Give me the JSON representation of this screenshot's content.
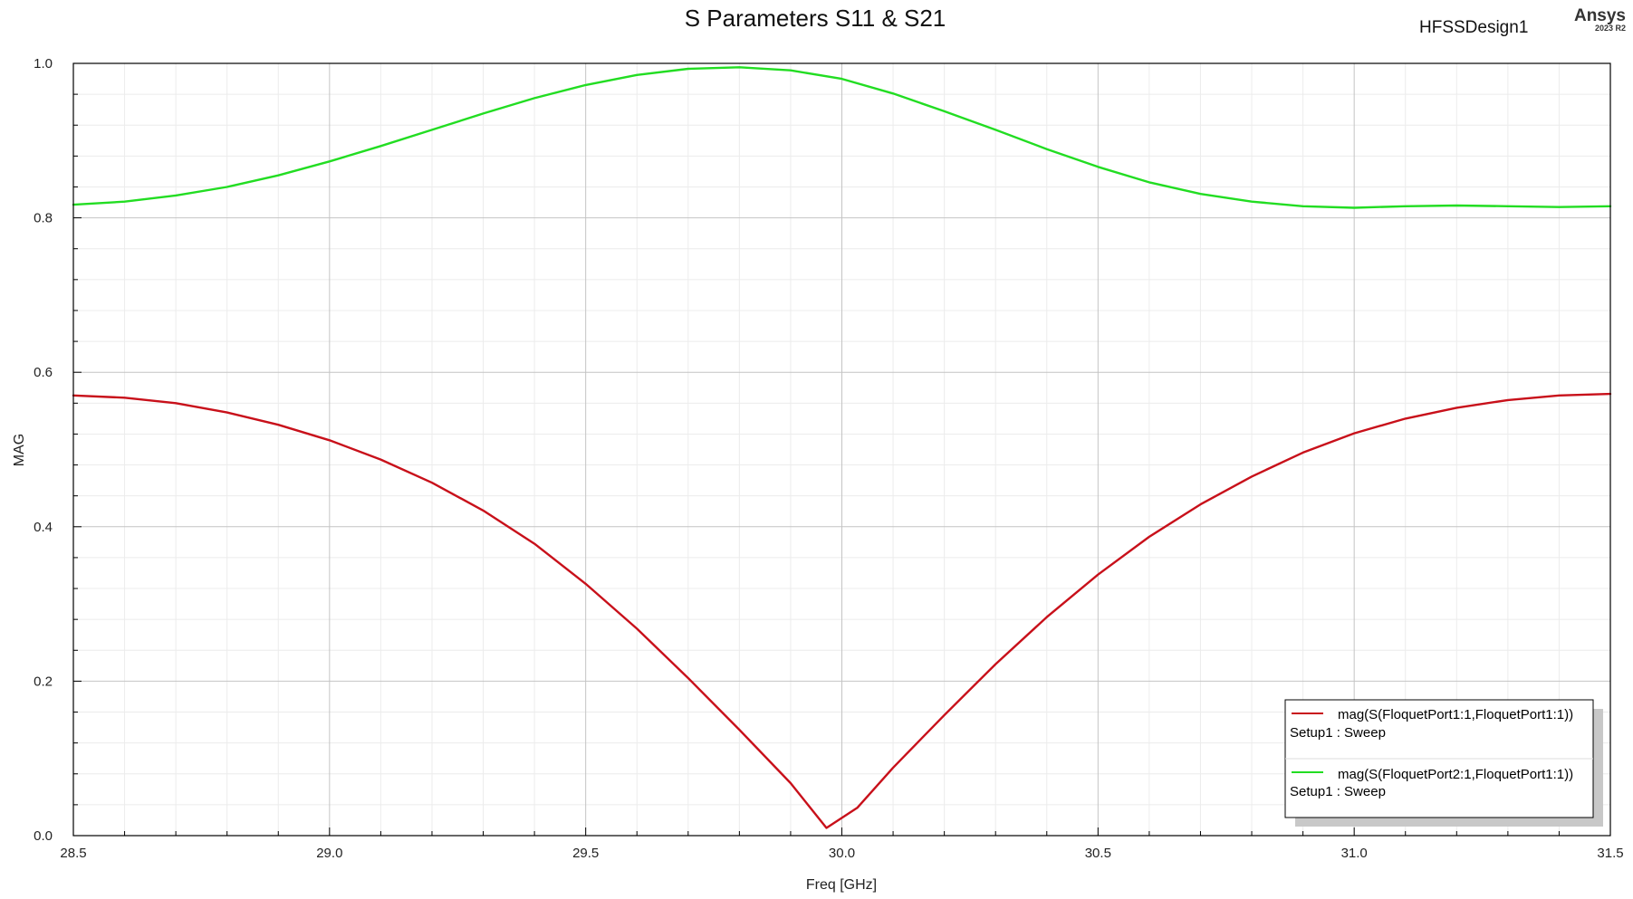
{
  "header": {
    "design_name": "HFSSDesign1",
    "brand": "Ansys",
    "brand_version": "2023 R2"
  },
  "chart_data": {
    "type": "line",
    "title": "S Parameters S11 & S21",
    "xlabel": "Freq [GHz]",
    "ylabel": "MAG",
    "xlim": [
      28.5,
      31.5
    ],
    "ylim": [
      0.0,
      1.0
    ],
    "x_ticks": [
      "28.5",
      "29.0",
      "29.5",
      "30.0",
      "30.5",
      "31.0",
      "31.5"
    ],
    "y_ticks": [
      "0.0",
      "0.2",
      "0.4",
      "0.6",
      "0.8",
      "1.0"
    ],
    "grid": true,
    "legend_position": "bottom-right",
    "series": [
      {
        "name": "mag(S(FloquetPort1:1,FloquetPort1:1))",
        "setup": "Setup1 : Sweep",
        "color": "#c8101a",
        "x": [
          28.5,
          28.6,
          28.7,
          28.8,
          28.9,
          29.0,
          29.1,
          29.2,
          29.3,
          29.4,
          29.5,
          29.6,
          29.7,
          29.8,
          29.9,
          29.97,
          30.03,
          30.1,
          30.2,
          30.3,
          30.4,
          30.5,
          30.6,
          30.7,
          30.8,
          30.9,
          31.0,
          31.1,
          31.2,
          31.3,
          31.4,
          31.5
        ],
        "values": [
          0.57,
          0.567,
          0.56,
          0.548,
          0.532,
          0.512,
          0.487,
          0.457,
          0.421,
          0.378,
          0.326,
          0.268,
          0.204,
          0.137,
          0.068,
          0.01,
          0.036,
          0.088,
          0.156,
          0.222,
          0.283,
          0.338,
          0.387,
          0.429,
          0.465,
          0.496,
          0.521,
          0.54,
          0.554,
          0.564,
          0.57,
          0.572
        ]
      },
      {
        "name": "mag(S(FloquetPort2:1,FloquetPort1:1))",
        "setup": "Setup1 : Sweep",
        "color": "#22dd22",
        "x": [
          28.5,
          28.6,
          28.7,
          28.8,
          28.9,
          29.0,
          29.1,
          29.2,
          29.3,
          29.4,
          29.5,
          29.6,
          29.7,
          29.8,
          29.9,
          30.0,
          30.1,
          30.2,
          30.3,
          30.4,
          30.5,
          30.6,
          30.7,
          30.8,
          30.9,
          31.0,
          31.1,
          31.2,
          31.3,
          31.4,
          31.5
        ],
        "values": [
          0.817,
          0.821,
          0.829,
          0.84,
          0.855,
          0.873,
          0.893,
          0.914,
          0.935,
          0.955,
          0.972,
          0.985,
          0.993,
          0.995,
          0.991,
          0.98,
          0.961,
          0.938,
          0.914,
          0.889,
          0.866,
          0.846,
          0.831,
          0.821,
          0.815,
          0.813,
          0.815,
          0.816,
          0.815,
          0.814,
          0.815
        ]
      }
    ]
  }
}
